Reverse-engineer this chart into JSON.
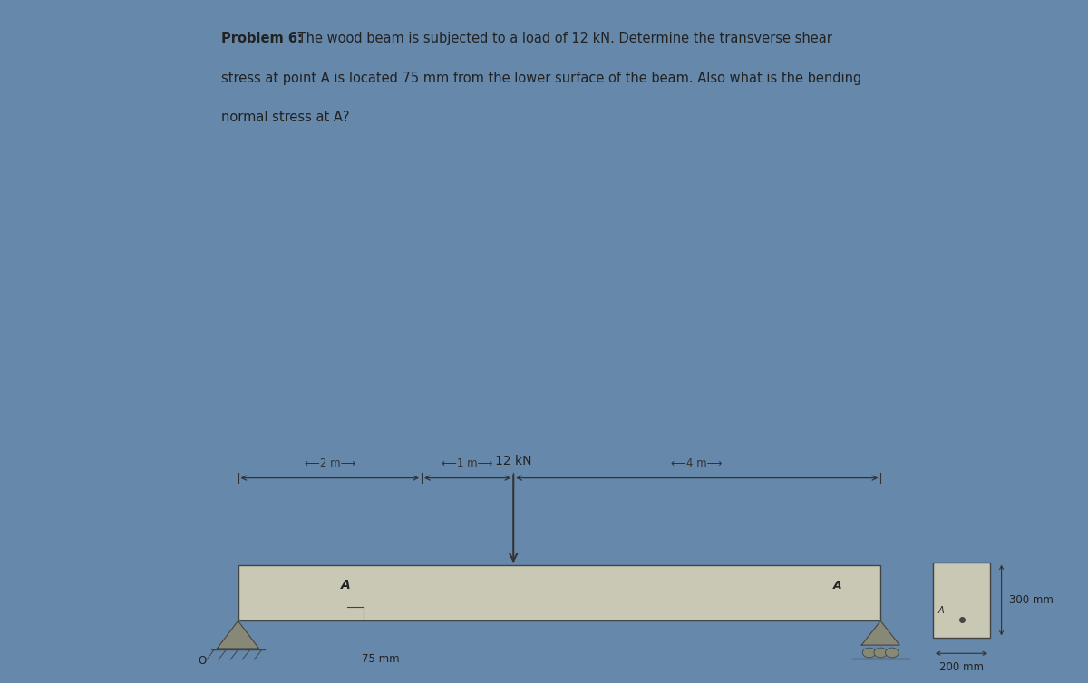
{
  "problem_text_line1": "Problem 6: The wood beam is subjected to a load of 12 kN. Determine the transverse shear",
  "problem_text_line2": "stress at point A is located 75 mm from the lower surface of the beam. Also what is the bending",
  "problem_text_line3": "normal stress at A?",
  "problem_bold": "Problem 6:",
  "load_label": "12 kN",
  "dim_2m": "⟵2 m⟶",
  "dim_1m": "⟵1 m⟶",
  "dim_4m": "⟵4 m⟶",
  "bottom_label": "75 mm",
  "side_label_top": "300 mm",
  "side_label_bottom": "200 mm",
  "point_A": "A",
  "panel_bg": "#e8e8e0",
  "panel_bg2": "#d8d8cc",
  "blue_bg": "#6688aa",
  "beam_fill": "#c8c8b4",
  "beam_edge": "#444444",
  "dim_line_color": "#333333",
  "text_color": "#222222",
  "support_fill": "#888877",
  "arrow_color": "#333333"
}
